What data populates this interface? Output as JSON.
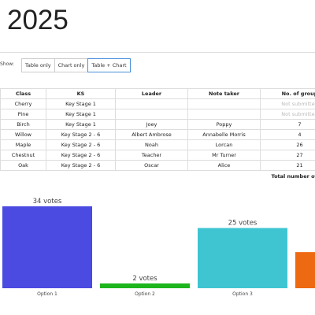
{
  "header": {
    "title": "2025"
  },
  "controls": {
    "label": "Show:",
    "buttons": [
      "Table only",
      "Chart only",
      "Table + Chart"
    ],
    "selected": 2
  },
  "table": {
    "columns": [
      "Class",
      "KS",
      "Leader",
      "Note taker",
      "No. of group"
    ],
    "rows": [
      [
        "Cherry",
        "Key Stage 1",
        null,
        null,
        "Not submitted"
      ],
      [
        "Pine",
        "Key Stage 1",
        null,
        null,
        "Not submitted"
      ],
      [
        "Birch",
        "Key Stage 1",
        "Joey",
        "Poppy",
        "7"
      ],
      [
        "Willow",
        "Key Stage 2 - 6",
        "Albert Ambrose",
        "Annabelle Morris",
        "4"
      ],
      [
        "Maple",
        "Key Stage 2 - 6",
        "Noah",
        "Lorcan",
        "26"
      ],
      [
        "Chestnut",
        "Key Stage 2 - 6",
        "Teacher",
        "Mr Turner",
        "27"
      ],
      [
        "Oak",
        "Key Stage 2 - 6",
        "Oscar",
        "Alice",
        "21"
      ]
    ],
    "footer": "Total number of"
  },
  "chart_data": {
    "type": "bar",
    "categories": [
      "Option 1",
      "Option 2",
      "Option 3",
      null
    ],
    "values": [
      34,
      2,
      25,
      15
    ],
    "value_labels": [
      "34 votes",
      "2 votes",
      "25 votes",
      null
    ],
    "colors": [
      "#4b4be2",
      "#1db51d",
      "#3fc5d2",
      "#ee6a12"
    ]
  }
}
